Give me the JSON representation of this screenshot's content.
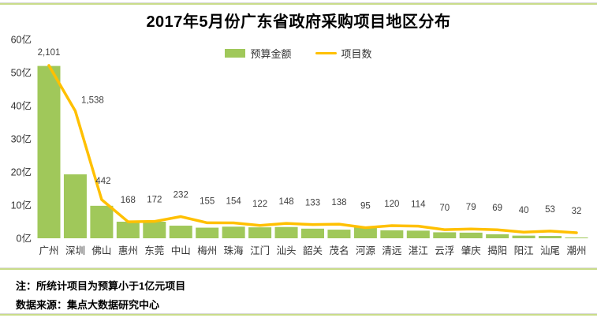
{
  "page": {
    "title": "2017年5月份广东省政府采购项目地区分布",
    "note": "注：所统计项目为预算小于1亿元项目",
    "source": "数据来源：集点大数据研究中心"
  },
  "colors": {
    "bar": "#a0c85a",
    "line": "#ffc000",
    "separator_green": "#c9dc8a",
    "separator_gray": "#d9d9d9",
    "text": "#333333",
    "label_text": "#3f3f3f"
  },
  "chart_data": {
    "type": "bar",
    "subtype": "combo bar+line",
    "title": "2017年5月份广东省政府采购项目地区分布",
    "categories": [
      "广州",
      "深圳",
      "佛山",
      "惠州",
      "东莞",
      "中山",
      "梅州",
      "珠海",
      "江门",
      "汕头",
      "韶关",
      "茂名",
      "河源",
      "清远",
      "湛江",
      "云浮",
      "肇庆",
      "揭阳",
      "阳江",
      "汕尾",
      "潮州"
    ],
    "series": [
      {
        "name": "预算金额",
        "type": "bar",
        "unit": "亿",
        "color": "#a0c85a",
        "values": [
          52,
          19.3,
          9.8,
          5.0,
          5.0,
          3.8,
          3.2,
          3.5,
          3.3,
          3.4,
          2.9,
          2.6,
          3.3,
          2.4,
          2.3,
          1.8,
          1.7,
          1.2,
          0.8,
          0.7,
          0.2
        ]
      },
      {
        "name": "项目数",
        "type": "line",
        "color": "#ffc000",
        "values": [
          2101,
          1538,
          442,
          168,
          172,
          232,
          155,
          154,
          122,
          148,
          133,
          138,
          95,
          120,
          114,
          70,
          79,
          69,
          40,
          53,
          32
        ],
        "labels": [
          "2,101",
          "1,538",
          "442",
          "168",
          "172",
          "232",
          "155",
          "154",
          "122",
          "148",
          "133",
          "138",
          "95",
          "120",
          "114",
          "70",
          "79",
          "69",
          "40",
          "53",
          "32"
        ]
      }
    ],
    "yaxis": {
      "ticks": [
        "0亿",
        "10亿",
        "20亿",
        "30亿",
        "40亿",
        "50亿",
        "60亿"
      ],
      "min": 0,
      "max": 60,
      "grid": false
    },
    "legend_position": "top-center"
  }
}
